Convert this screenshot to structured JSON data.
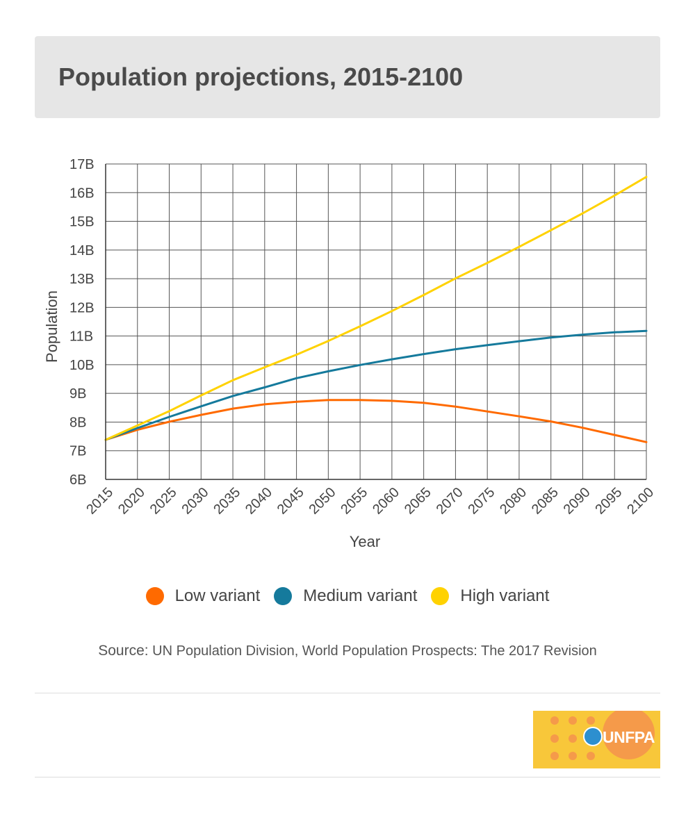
{
  "header": {
    "title": "Population projections, 2015-2100"
  },
  "chart_data": {
    "type": "line",
    "xlabel": "Year",
    "ylabel": "Population",
    "xlim": [
      2015,
      2100
    ],
    "ylim": [
      6,
      17
    ],
    "x_ticks": [
      2015,
      2020,
      2025,
      2030,
      2035,
      2040,
      2045,
      2050,
      2055,
      2060,
      2065,
      2070,
      2075,
      2080,
      2085,
      2090,
      2095,
      2100
    ],
    "y_ticks": [
      6,
      7,
      8,
      9,
      10,
      11,
      12,
      13,
      14,
      15,
      16,
      17
    ],
    "y_tick_labels": [
      "6B",
      "7B",
      "8B",
      "9B",
      "10B",
      "11B",
      "12B",
      "13B",
      "14B",
      "15B",
      "16B",
      "17B"
    ],
    "grid": true,
    "legend_position": "bottom",
    "x": [
      2015,
      2020,
      2025,
      2030,
      2035,
      2040,
      2045,
      2050,
      2055,
      2060,
      2065,
      2070,
      2075,
      2080,
      2085,
      2090,
      2095,
      2100
    ],
    "series": [
      {
        "name": "Low variant",
        "color": "#ff6a00",
        "values": [
          7.38,
          7.73,
          8.01,
          8.25,
          8.47,
          8.62,
          8.71,
          8.77,
          8.77,
          8.74,
          8.67,
          8.54,
          8.37,
          8.2,
          8.02,
          7.8,
          7.55,
          7.3
        ]
      },
      {
        "name": "Medium variant",
        "color": "#157a9c",
        "values": [
          7.38,
          7.79,
          8.18,
          8.55,
          8.91,
          9.21,
          9.53,
          9.77,
          9.99,
          10.19,
          10.37,
          10.54,
          10.68,
          10.82,
          10.95,
          11.05,
          11.13,
          11.18
        ]
      },
      {
        "name": "High variant",
        "color": "#ffd200",
        "values": [
          7.38,
          7.88,
          8.38,
          8.93,
          9.46,
          9.91,
          10.35,
          10.83,
          11.34,
          11.87,
          12.43,
          13.01,
          13.55,
          14.11,
          14.69,
          15.28,
          15.9,
          16.55
        ]
      }
    ]
  },
  "legend": {
    "items": [
      {
        "label": "Low variant",
        "color": "#ff6a00"
      },
      {
        "label": "Medium variant",
        "color": "#157a9c"
      },
      {
        "label": "High variant",
        "color": "#ffd200"
      }
    ]
  },
  "source": {
    "label": "Source:",
    "text": "UN Population Division, World Population Prospects: The 2017 Revision"
  },
  "logo": {
    "text": "UNFPA",
    "bg_color": "#f8c73a",
    "accent_color": "#f59a4a"
  }
}
